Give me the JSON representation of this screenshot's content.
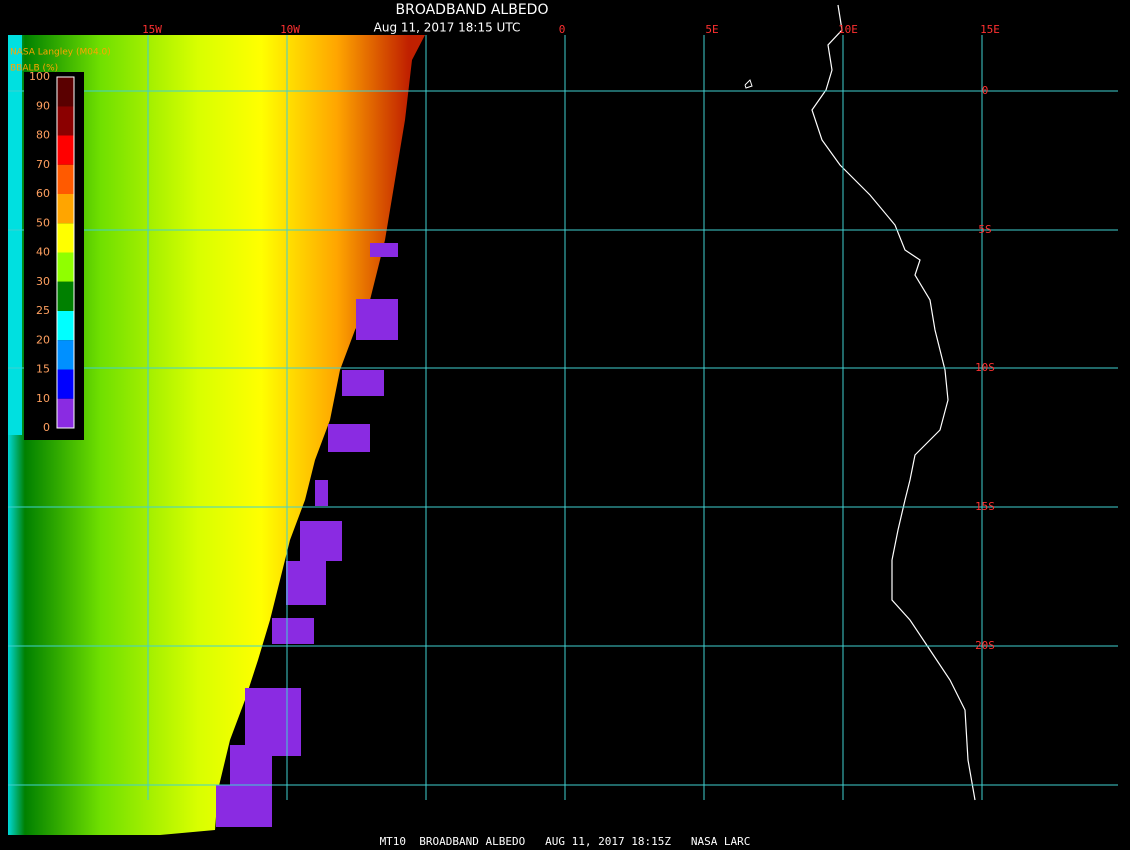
{
  "header": {
    "title": "BROADBAND ALBEDO",
    "subtitle": "Aug 11, 2017 18:15 UTC",
    "source": "NASA Langley (M04.0)"
  },
  "colorbar": {
    "label": "BBALB (%)",
    "ticks": [
      "100",
      "90",
      "80",
      "70",
      "60",
      "50",
      "40",
      "30",
      "25",
      "20",
      "15",
      "10",
      "0"
    ],
    "colors": [
      "#5a0000",
      "#8b0000",
      "#ff0000",
      "#ff5a00",
      "#ffa500",
      "#ffff00",
      "#90ff00",
      "#008000",
      "#00ffff",
      "#0090ff",
      "#0000ff",
      "#8a2be2"
    ]
  },
  "map": {
    "longitude_labels": [
      "15W",
      "10W",
      "0",
      "5E",
      "10E",
      "15E"
    ],
    "latitude_labels": [
      "0",
      "5S",
      "10S",
      "15S",
      "20S"
    ]
  },
  "footer": "MT10  BROADBAND ALBEDO   AUG 11, 2017 18:15Z   NASA LARC"
}
